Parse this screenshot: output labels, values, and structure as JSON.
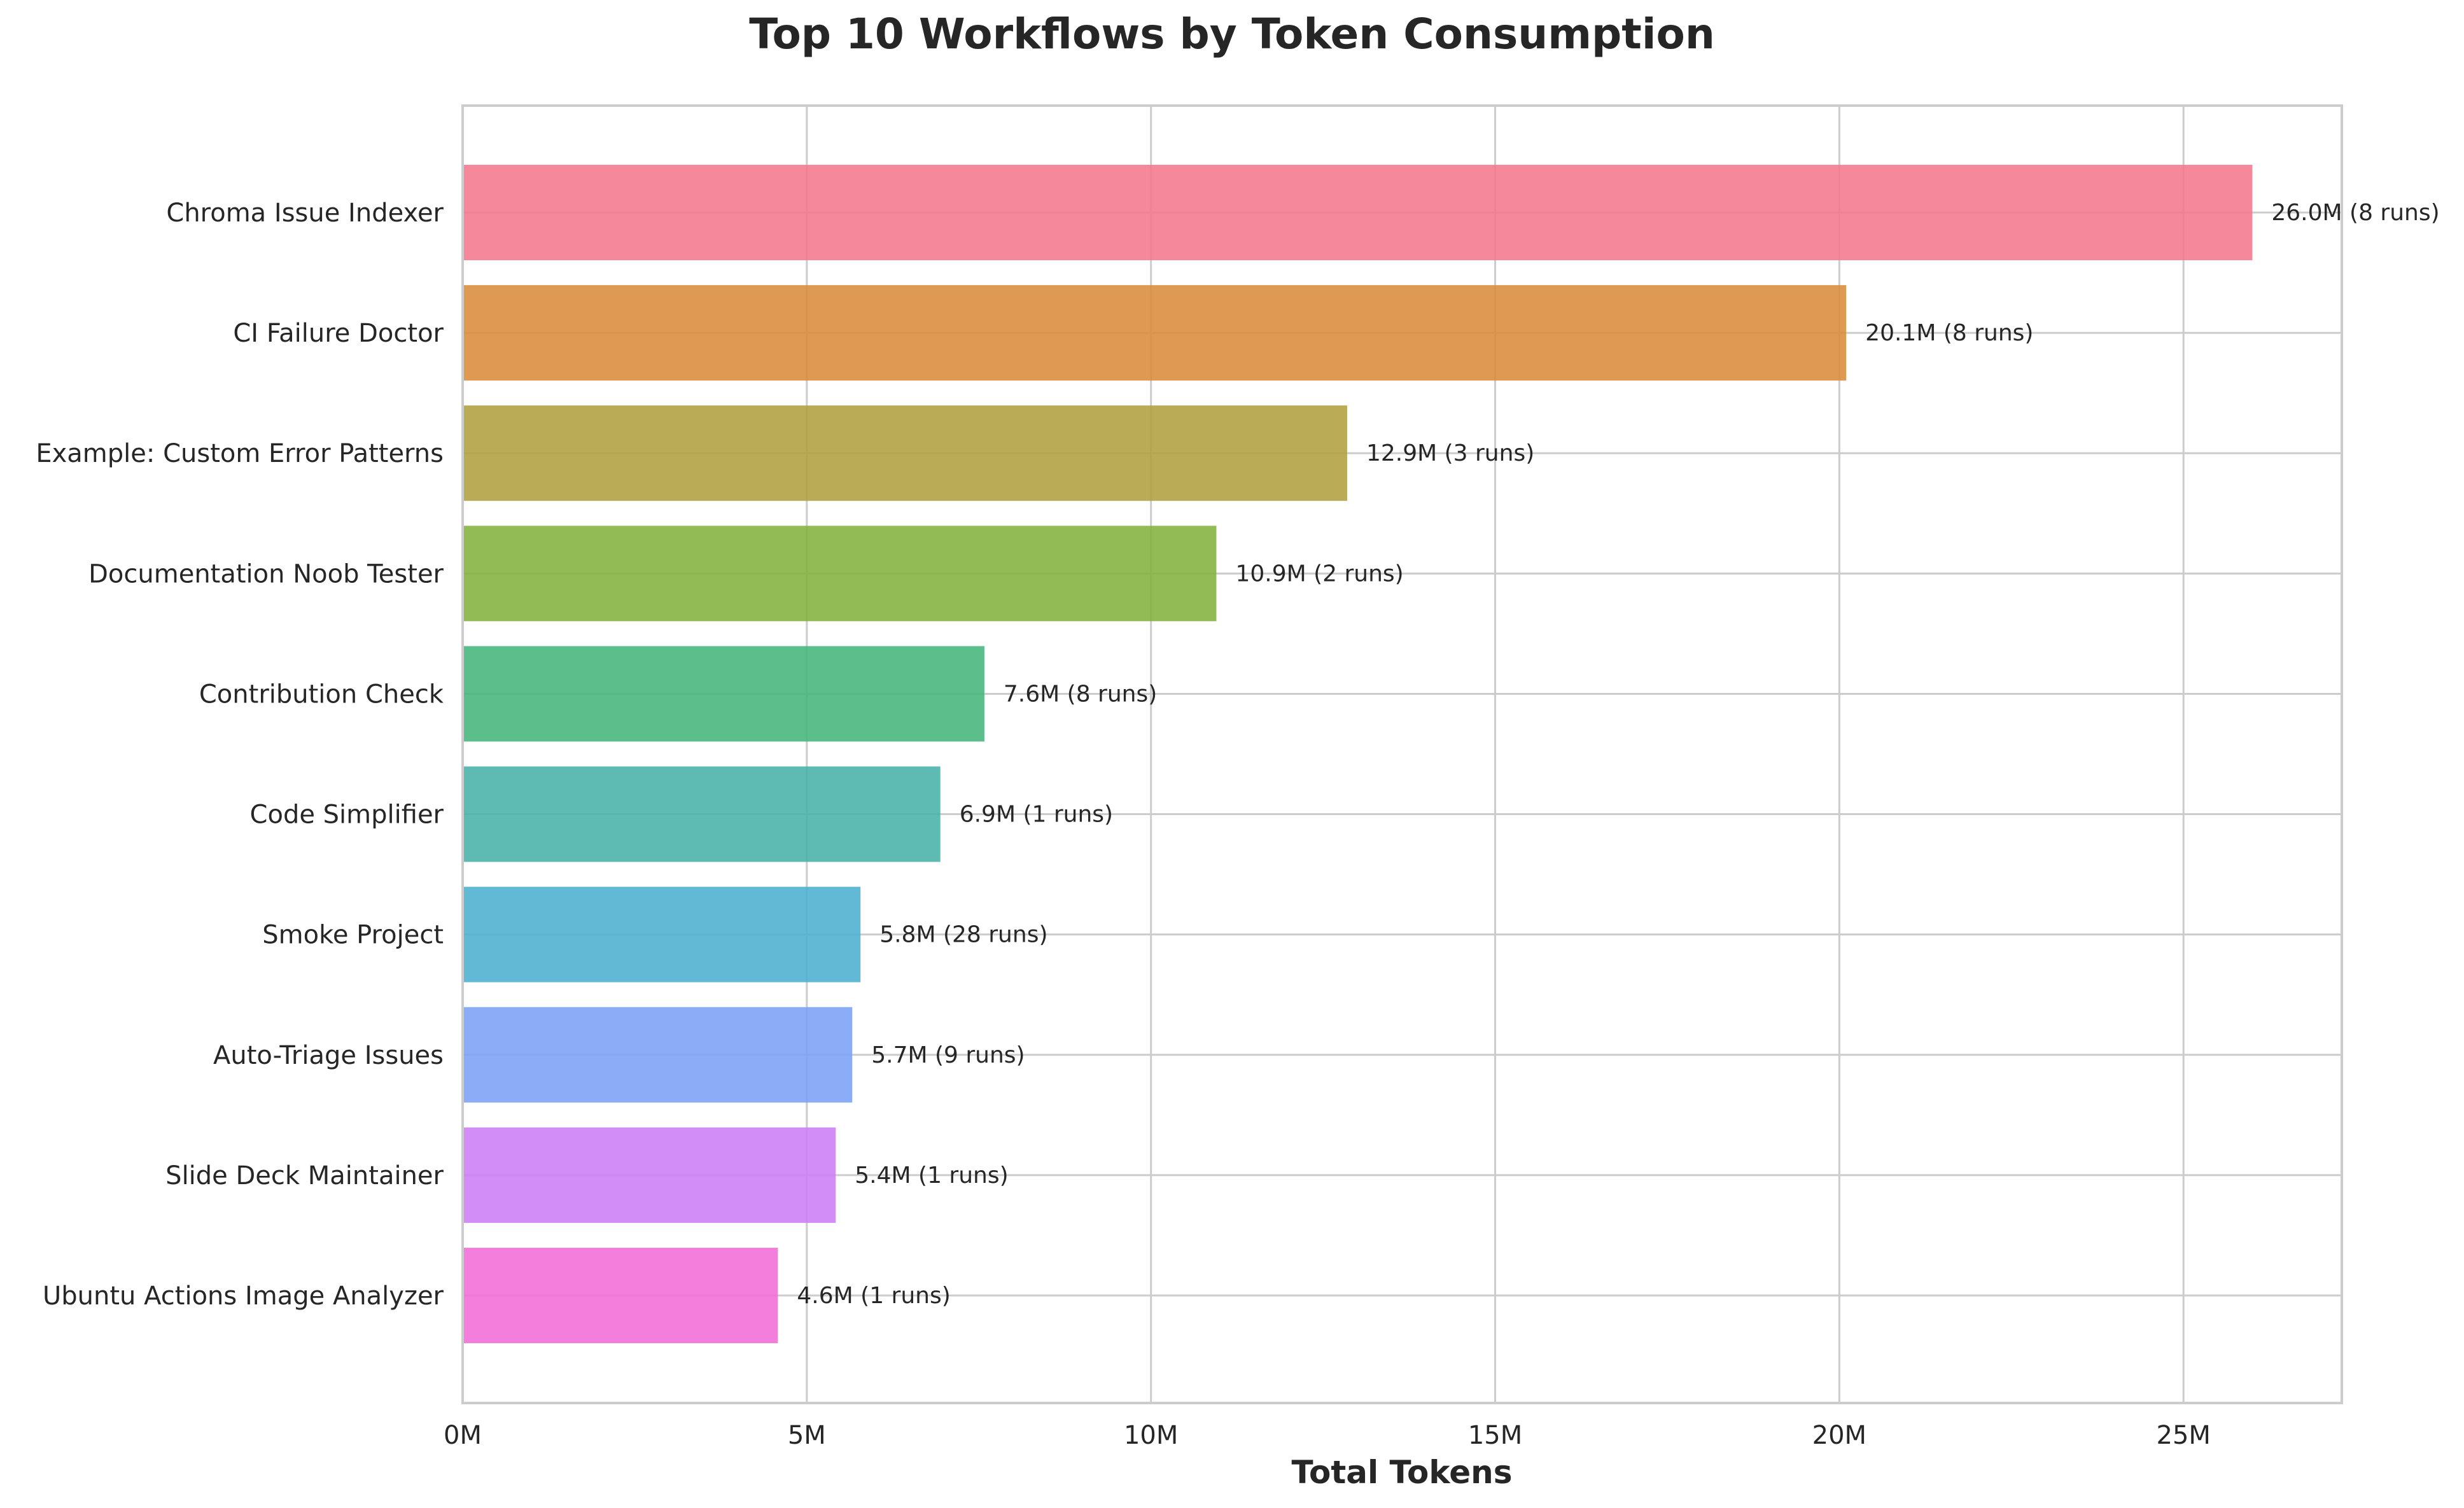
{
  "chart_data": {
    "type": "bar",
    "orientation": "horizontal",
    "title": "Top 10 Workflows by Token Consumption",
    "xlabel": "Total Tokens",
    "ylabel": "",
    "xlim": [
      0,
      27.3
    ],
    "x_ticks": [
      0,
      5,
      10,
      15,
      20,
      25
    ],
    "x_tick_labels": [
      "0M",
      "5M",
      "10M",
      "15M",
      "20M",
      "25M"
    ],
    "grid": true,
    "categories": [
      "Chroma Issue Indexer",
      "CI Failure Doctor",
      "Example: Custom Error Patterns",
      "Documentation Noob Tester",
      "Contribution Check",
      "Code Simplifier",
      "Smoke Project",
      "Auto-Triage Issues",
      "Slide Deck Maintainer",
      "Ubuntu Actions Image Analyzer"
    ],
    "values": [
      26.0,
      20.1,
      12.85,
      10.95,
      7.58,
      6.94,
      5.78,
      5.66,
      5.42,
      4.58
    ],
    "runs": [
      8,
      8,
      3,
      2,
      8,
      1,
      28,
      9,
      1,
      1
    ],
    "data_labels": [
      "26.0M (8 runs)",
      "20.1M (8 runs)",
      "12.9M (3 runs)",
      "10.9M (2 runs)",
      "7.6M (8 runs)",
      "6.9M (1 runs)",
      "5.8M (28 runs)",
      "5.7M (9 runs)",
      "5.4M (1 runs)",
      "4.6M (1 runs)"
    ],
    "colors": [
      "#f5778d",
      "#d98c3a",
      "#b0a140",
      "#84b23e",
      "#45b57b",
      "#48b2a9",
      "#4bafd0",
      "#7ba1f5",
      "#cc7ef2",
      "#f26cd6"
    ],
    "units": "M tokens"
  }
}
